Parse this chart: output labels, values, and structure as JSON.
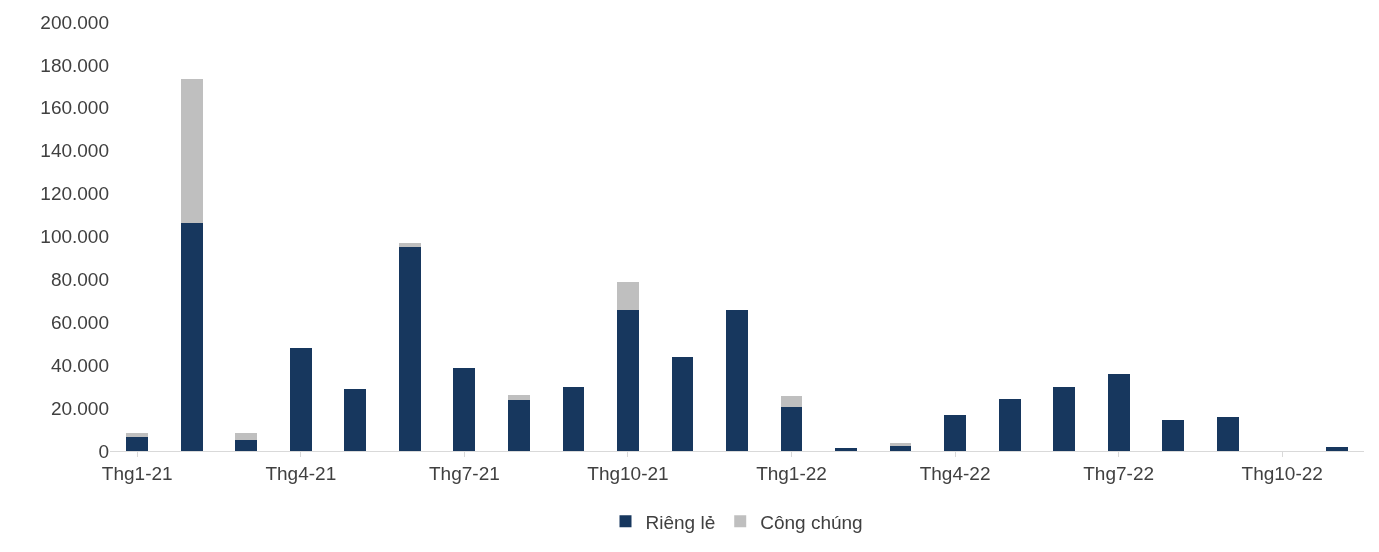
{
  "chart_data": {
    "type": "bar",
    "stacked": true,
    "categories": [
      "Thg1-21",
      null,
      null,
      "Thg4-21",
      null,
      null,
      "Thg7-21",
      null,
      null,
      "Thg10-21",
      null,
      null,
      "Thg1-22",
      null,
      null,
      "Thg4-22",
      null,
      null,
      "Thg7-22",
      null,
      null,
      "Thg10-22",
      null
    ],
    "series": [
      {
        "name": "Riêng lẻ",
        "color": "#17375e",
        "values": [
          6500,
          106400,
          5100,
          48000,
          29000,
          95000,
          38700,
          24000,
          30000,
          65900,
          43800,
          65900,
          20700,
          1400,
          2300,
          16600,
          24400,
          30000,
          35900,
          14300,
          15700,
          0,
          1800
        ]
      },
      {
        "name": "Công chúng",
        "color": "#bfbfbf",
        "values": [
          1800,
          66900,
          3200,
          0,
          0,
          1800,
          0,
          2300,
          0,
          12900,
          0,
          0,
          5100,
          null,
          1400,
          0,
          0,
          0,
          0,
          0,
          0,
          0,
          0
        ]
      }
    ],
    "ylim": [
      0,
      200000
    ],
    "yticks": [
      {
        "value": 0,
        "label": "0"
      },
      {
        "value": 20000,
        "label": "20.000"
      },
      {
        "value": 40000,
        "label": "40.000"
      },
      {
        "value": 60000,
        "label": "60.000"
      },
      {
        "value": 80000,
        "label": "80.000"
      },
      {
        "value": 100000,
        "label": "100.000"
      },
      {
        "value": 120000,
        "label": "120.000"
      },
      {
        "value": 140000,
        "label": "140.000"
      },
      {
        "value": 160000,
        "label": "160.000"
      },
      {
        "value": 180000,
        "label": "180.000"
      },
      {
        "value": 200000,
        "label": "200.000"
      }
    ],
    "legend": "bottom"
  }
}
